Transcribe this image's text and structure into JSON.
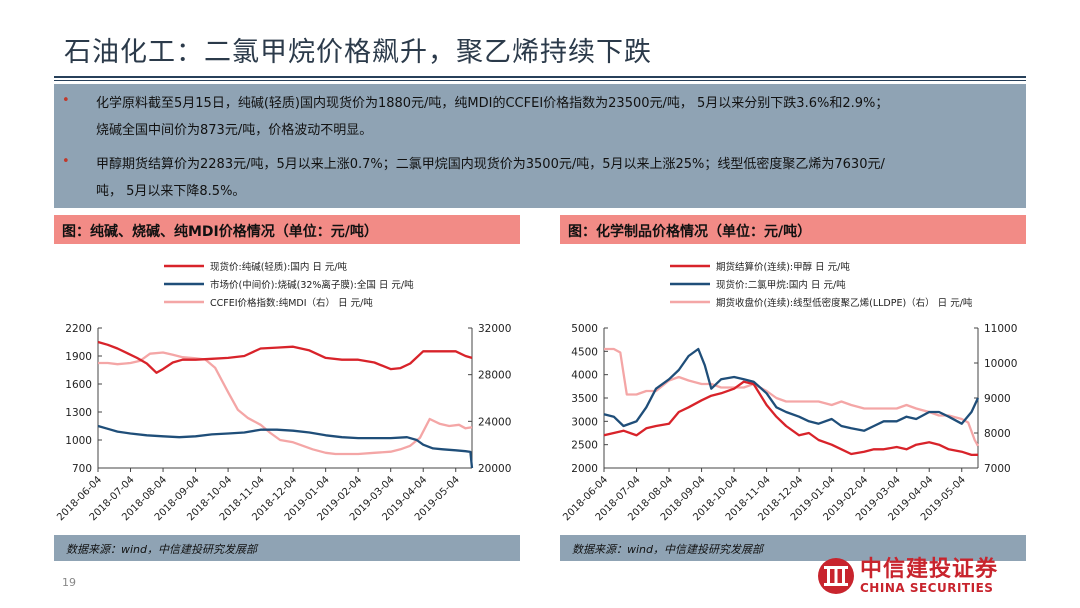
{
  "slide": {
    "title": "石油化工：二氯甲烷价格飙升，聚乙烯持续下跌",
    "page_number": "19"
  },
  "summary": {
    "bullet_1_line_1": "化学原料截至5月15日，纯碱(轻质)国内现货价为1880元/吨，纯MDI的CCFEI价格指数为23500元/吨，  5月以来分别下跌3.6%和2.9%；",
    "bullet_1_line_2": "烧碱全国中间价为873元/吨，价格波动不明显。",
    "bullet_2_line_1": "甲醇期货结算价为2283元/吨，5月以来上涨0.7%；二氯甲烷国内现货价为3500元/吨，5月以来上涨25%；线型低密度聚乙烯为7630元/",
    "bullet_2_line_2": "吨，  5月以来下降8.5%。",
    "bullet_glyph": "•"
  },
  "source_note": "数据来源：wind，中信建投研究发展部",
  "logo": {
    "cn": "中信建投证券",
    "en": "CHINA SECURITIES"
  },
  "colors": {
    "header_red": "#f28b86",
    "summary_blue": "#8fa3b4",
    "series_red": "#d8232a",
    "series_blue": "#1f4e79",
    "series_pink": "#f4a6a6"
  },
  "chart_data": [
    {
      "type": "line",
      "title": "图：纯碱、烧碱、纯MDI价格情况（单位：元/吨）",
      "x_ticks": [
        "2018-06-04",
        "2018-07-04",
        "2018-08-04",
        "2018-09-04",
        "2018-10-04",
        "2018-11-04",
        "2018-12-04",
        "2019-01-04",
        "2019-02-04",
        "2019-03-04",
        "2019-04-04",
        "2019-05-04"
      ],
      "x_range": [
        0,
        11.5
      ],
      "y_left": {
        "ticks": [
          700,
          1000,
          1300,
          1600,
          1900,
          2200
        ],
        "range": [
          700,
          2200
        ]
      },
      "y_right": {
        "ticks": [
          20000,
          24000,
          28000,
          32000
        ],
        "range": [
          20000,
          32000
        ]
      },
      "grid": false,
      "legend_position": "top-left",
      "series": [
        {
          "name": "现货价:纯碱(轻质):国内  日  元/吨",
          "color": "#d8232a",
          "axis": "left",
          "x": [
            0,
            0.3,
            0.6,
            0.9,
            1.2,
            1.5,
            1.8,
            2.0,
            2.3,
            2.6,
            3,
            3.5,
            4,
            4.5,
            5,
            5.5,
            6,
            6.5,
            7,
            7.5,
            8,
            8.5,
            9,
            9.3,
            9.6,
            10,
            10.5,
            11,
            11.3,
            11.5
          ],
          "y": [
            2050,
            2020,
            1980,
            1930,
            1880,
            1820,
            1720,
            1760,
            1830,
            1860,
            1860,
            1870,
            1880,
            1900,
            1980,
            1990,
            2000,
            1960,
            1880,
            1860,
            1860,
            1830,
            1760,
            1770,
            1820,
            1950,
            1950,
            1950,
            1900,
            1880
          ]
        },
        {
          "name": "市场价(中间价):烧碱(32%离子膜):全国  日  元/吨",
          "color": "#1f4e79",
          "axis": "left",
          "x": [
            0,
            0.3,
            0.6,
            1,
            1.5,
            2,
            2.5,
            3,
            3.5,
            4,
            4.5,
            5,
            5.5,
            6,
            6.5,
            7,
            7.5,
            8,
            8.5,
            9,
            9.5,
            9.8,
            10,
            10.3,
            10.6,
            11,
            11.3,
            11.45,
            11.5
          ],
          "y": [
            1150,
            1120,
            1090,
            1070,
            1050,
            1040,
            1030,
            1040,
            1060,
            1070,
            1080,
            1110,
            1110,
            1100,
            1080,
            1050,
            1030,
            1020,
            1020,
            1020,
            1030,
            1000,
            950,
            910,
            900,
            890,
            880,
            873,
            700
          ]
        },
        {
          "name": "CCFEI价格指数:纯MDI（右）  日  元/吨",
          "color": "#f4a6a6",
          "axis": "right",
          "x": [
            0,
            0.3,
            0.6,
            1,
            1.3,
            1.6,
            2,
            2.3,
            2.6,
            3,
            3.3,
            3.6,
            4,
            4.3,
            4.6,
            5,
            5.3,
            5.6,
            6,
            6.3,
            6.6,
            7,
            7.3,
            7.6,
            8,
            8.5,
            9,
            9.3,
            9.6,
            9.9,
            10.2,
            10.5,
            10.8,
            11.1,
            11.3,
            11.5
          ],
          "y": [
            29000,
            29000,
            28900,
            29000,
            29200,
            29800,
            29900,
            29700,
            29500,
            29400,
            29300,
            28600,
            26500,
            25000,
            24300,
            23700,
            23000,
            22400,
            22200,
            21900,
            21600,
            21300,
            21200,
            21200,
            21200,
            21300,
            21400,
            21600,
            21900,
            22600,
            24200,
            23800,
            23600,
            23700,
            23400,
            23500
          ]
        }
      ]
    },
    {
      "type": "line",
      "title": "图：化学制品价格情况（单位：元/吨）",
      "x_ticks": [
        "2018-06-04",
        "2018-07-04",
        "2018-08-04",
        "2018-09-04",
        "2018-10-04",
        "2018-11-04",
        "2018-12-04",
        "2019-01-04",
        "2019-02-04",
        "2019-03-04",
        "2019-04-04",
        "2019-05-04"
      ],
      "x_range": [
        0,
        11.5
      ],
      "y_left": {
        "ticks": [
          2000,
          2500,
          3000,
          3500,
          4000,
          4500,
          5000
        ],
        "range": [
          2000,
          5000
        ]
      },
      "y_right": {
        "ticks": [
          7000,
          8000,
          9000,
          10000,
          11000
        ],
        "range": [
          7000,
          11000
        ]
      },
      "grid": false,
      "legend_position": "top-left",
      "series": [
        {
          "name": "期货结算价(连续):甲醇  日  元/吨",
          "color": "#d8232a",
          "axis": "left",
          "x": [
            0,
            0.3,
            0.6,
            1,
            1.3,
            1.6,
            2,
            2.3,
            2.6,
            3,
            3.3,
            3.6,
            4,
            4.3,
            4.6,
            5,
            5.3,
            5.6,
            6,
            6.3,
            6.6,
            7,
            7.3,
            7.6,
            8,
            8.3,
            8.6,
            9,
            9.3,
            9.6,
            10,
            10.3,
            10.6,
            11,
            11.3,
            11.5
          ],
          "y": [
            2700,
            2750,
            2800,
            2700,
            2850,
            2900,
            2950,
            3200,
            3300,
            3450,
            3550,
            3600,
            3700,
            3850,
            3800,
            3350,
            3100,
            2900,
            2700,
            2750,
            2600,
            2500,
            2400,
            2300,
            2350,
            2400,
            2400,
            2450,
            2400,
            2500,
            2550,
            2500,
            2400,
            2350,
            2280,
            2283
          ]
        },
        {
          "name": "现货价:二氯甲烷:国内  日  元/吨",
          "color": "#1f4e79",
          "axis": "left",
          "x": [
            0,
            0.3,
            0.6,
            1,
            1.3,
            1.6,
            2,
            2.3,
            2.6,
            2.9,
            3.1,
            3.3,
            3.6,
            4,
            4.3,
            4.6,
            5,
            5.3,
            5.6,
            6,
            6.3,
            6.6,
            7,
            7.3,
            7.6,
            8,
            8.3,
            8.6,
            9,
            9.3,
            9.6,
            10,
            10.3,
            10.6,
            11,
            11.3,
            11.5
          ],
          "y": [
            3150,
            3100,
            2900,
            3000,
            3300,
            3700,
            3900,
            4100,
            4400,
            4550,
            4200,
            3700,
            3900,
            3950,
            3900,
            3850,
            3600,
            3300,
            3200,
            3100,
            3000,
            2950,
            3050,
            2900,
            2850,
            2800,
            2900,
            3000,
            3000,
            3100,
            3050,
            3200,
            3200,
            3100,
            2950,
            3200,
            3500
          ]
        },
        {
          "name": "期货收盘价(连续):线型低密度聚乙烯(LLDPE)（右）  日  元/吨",
          "color": "#f4a6a6",
          "axis": "right",
          "x": [
            0,
            0.3,
            0.5,
            0.7,
            1,
            1.3,
            1.6,
            2,
            2.3,
            2.6,
            3,
            3.3,
            3.6,
            4,
            4.3,
            4.6,
            5,
            5.3,
            5.6,
            6,
            6.3,
            6.6,
            7,
            7.3,
            7.6,
            8,
            8.3,
            8.6,
            9,
            9.3,
            9.6,
            10,
            10.3,
            10.6,
            11,
            11.2,
            11.4,
            11.5
          ],
          "y": [
            10400,
            10400,
            10300,
            9100,
            9100,
            9200,
            9200,
            9500,
            9600,
            9500,
            9400,
            9400,
            9300,
            9300,
            9300,
            9400,
            9200,
            9000,
            8900,
            8900,
            8900,
            8900,
            8800,
            8900,
            8800,
            8700,
            8700,
            8700,
            8700,
            8800,
            8700,
            8600,
            8500,
            8500,
            8400,
            8300,
            7800,
            7630
          ]
        }
      ]
    }
  ]
}
